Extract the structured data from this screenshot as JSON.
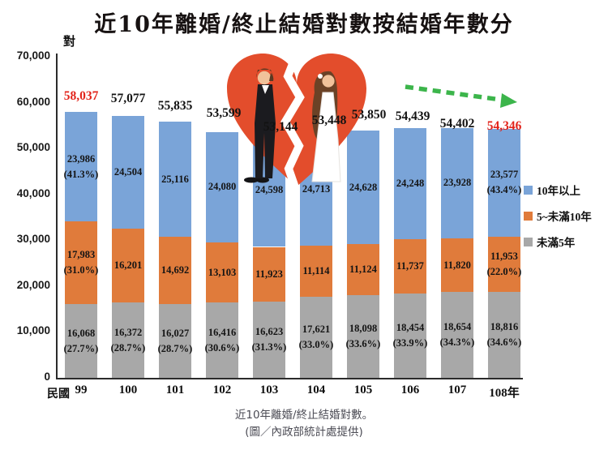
{
  "page": {
    "caption_line1": "近10年離婚/終止結婚對數。",
    "caption_line2": "(圖／內政部統計處提供)"
  },
  "chart_data": {
    "type": "bar",
    "stacked": true,
    "title": "近10年離婚/終止結婚對數按結婚年數分",
    "unit_label": "對",
    "x_prefix": "民國",
    "categories": [
      "99",
      "100",
      "101",
      "102",
      "103",
      "104",
      "105",
      "106",
      "107",
      "108年"
    ],
    "series": [
      {
        "name": "未滿5年",
        "color": "#A8A8A8",
        "values": [
          16068,
          16372,
          16027,
          16416,
          16623,
          17621,
          18098,
          18454,
          18654,
          18816
        ],
        "pcts": [
          "27.7%",
          "28.7%",
          "28.7%",
          "30.6%",
          "31.3%",
          "33.0%",
          "33.6%",
          "33.9%",
          "34.3%",
          "34.6%"
        ]
      },
      {
        "name": "5~未滿10年",
        "color": "#E07B3B",
        "values": [
          17983,
          16201,
          14692,
          13103,
          11923,
          11114,
          11124,
          11737,
          11820,
          11953
        ],
        "pcts": [
          "31.0%",
          null,
          null,
          null,
          null,
          null,
          null,
          null,
          null,
          "22.0%"
        ]
      },
      {
        "name": "10年以上",
        "color": "#7AA4D8",
        "values": [
          23986,
          24504,
          25116,
          24080,
          24598,
          24713,
          24628,
          24248,
          23928,
          23577
        ],
        "pcts": [
          "41.3%",
          null,
          null,
          null,
          null,
          null,
          null,
          null,
          null,
          "43.4%"
        ]
      }
    ],
    "totals": [
      58037,
      57077,
      55835,
      53599,
      53144,
      53448,
      53850,
      54439,
      54402,
      54346
    ],
    "totals_red": [
      true,
      false,
      false,
      false,
      false,
      false,
      false,
      false,
      false,
      true
    ],
    "total_highlight_color": "#E2231A",
    "total_color": "#121212",
    "ylim": [
      0,
      70000
    ],
    "ytick_step": 10000,
    "yticks": [
      "0",
      "10,000",
      "20,000",
      "30,000",
      "40,000",
      "50,000",
      "60,000",
      "70,000"
    ],
    "legend": [
      {
        "label": "10年以上",
        "color": "#7AA4D8"
      },
      {
        "label": "5~未滿10年",
        "color": "#E07B3B"
      },
      {
        "label": "未滿5年",
        "color": "#A8A8A8"
      }
    ],
    "grid": false,
    "legend_position": "right",
    "trend_arrow": {
      "direction": "right-down",
      "color": "#3CB54B"
    },
    "center_illustration": "broken heart with groom and bride back to back"
  }
}
